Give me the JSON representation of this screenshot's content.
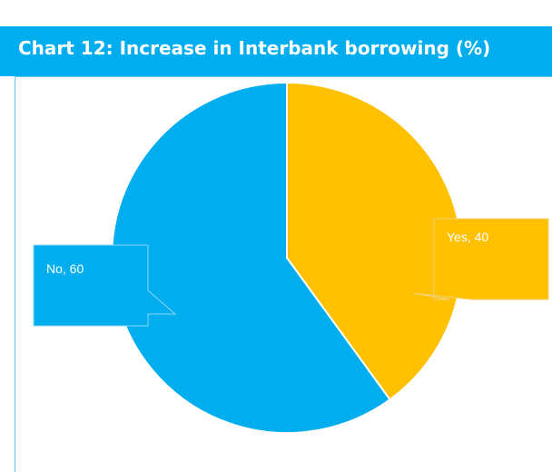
{
  "header": {
    "title": "Chart 12: Increase in Interbank borrowing (%)"
  },
  "chart_data": {
    "type": "pie",
    "title": "Chart 12: Increase in Interbank borrowing (%)",
    "slices": [
      {
        "label": "Yes",
        "value": 40,
        "color": "#ffc000",
        "data_label": "Yes, 40"
      },
      {
        "label": "No",
        "value": 60,
        "color": "#00aeef",
        "data_label": "No, 60"
      }
    ]
  }
}
